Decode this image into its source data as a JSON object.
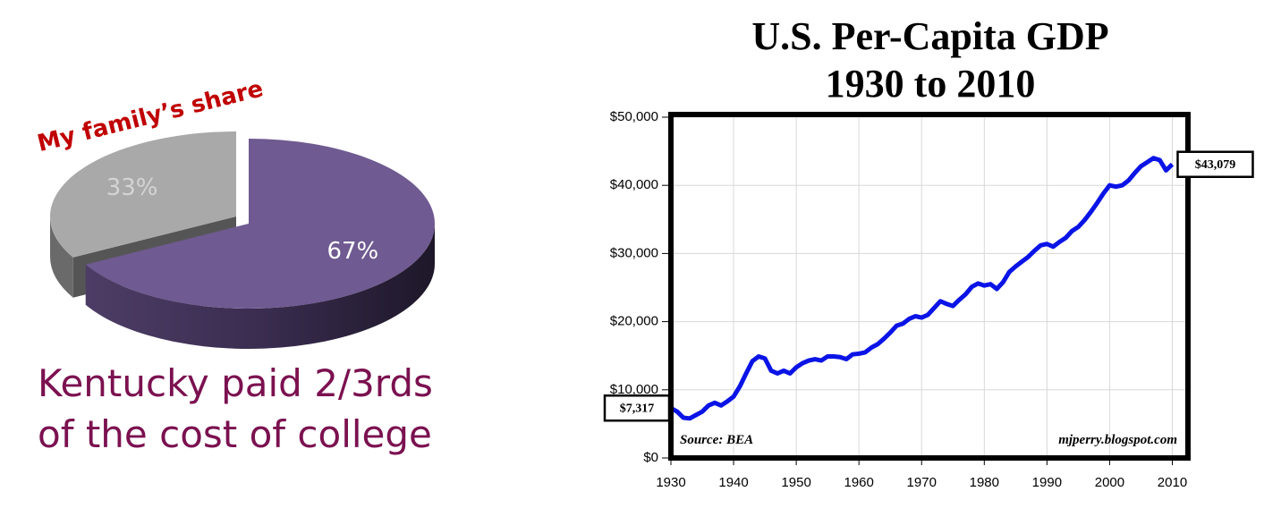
{
  "chart_data": [
    {
      "type": "pie3d",
      "values": [
        33,
        67
      ],
      "value_labels": [
        "33%",
        "67%"
      ],
      "colors": [
        "#a9a9a9",
        "#6f5a91"
      ],
      "annotations": [
        "My family’s share",
        "Kentucky paid 2/3rds",
        "of the cost of college"
      ]
    },
    {
      "type": "line",
      "title": "U.S. Per-Capita GDP",
      "subtitle": "1930 to 2010",
      "x": [
        1930,
        1931,
        1932,
        1933,
        1934,
        1935,
        1936,
        1937,
        1938,
        1939,
        1940,
        1941,
        1942,
        1943,
        1944,
        1945,
        1946,
        1947,
        1948,
        1949,
        1950,
        1951,
        1952,
        1953,
        1954,
        1955,
        1956,
        1957,
        1958,
        1959,
        1960,
        1961,
        1962,
        1963,
        1964,
        1965,
        1966,
        1967,
        1968,
        1969,
        1970,
        1971,
        1972,
        1973,
        1974,
        1975,
        1976,
        1977,
        1978,
        1979,
        1980,
        1981,
        1982,
        1983,
        1984,
        1985,
        1986,
        1987,
        1988,
        1989,
        1990,
        1991,
        1992,
        1993,
        1994,
        1995,
        1996,
        1997,
        1998,
        1999,
        2000,
        2001,
        2002,
        2003,
        2004,
        2005,
        2006,
        2007,
        2008,
        2009,
        2010
      ],
      "series": [
        {
          "name": "U.S. Per-Capita GDP",
          "color": "#0a14e6",
          "values": [
            7317,
            6800,
            5900,
            5800,
            6300,
            6800,
            7700,
            8100,
            7700,
            8300,
            9000,
            10500,
            12400,
            14200,
            14900,
            14600,
            12800,
            12400,
            12800,
            12400,
            13300,
            13900,
            14300,
            14500,
            14300,
            14900,
            14900,
            14800,
            14500,
            15200,
            15300,
            15500,
            16200,
            16700,
            17500,
            18400,
            19400,
            19700,
            20400,
            20800,
            20600,
            21000,
            22000,
            23000,
            22600,
            22300,
            23200,
            24000,
            25100,
            25600,
            25300,
            25500,
            24800,
            25800,
            27300,
            28100,
            28800,
            29500,
            30400,
            31200,
            31400,
            31000,
            31700,
            32300,
            33300,
            33900,
            34900,
            36100,
            37400,
            38800,
            40000,
            39800,
            40000,
            40700,
            41800,
            42800,
            43400,
            44000,
            43700,
            42200,
            43079
          ],
          "value_labels": [
            "$7,317",
            null,
            null,
            null,
            null,
            null,
            null,
            null,
            null,
            null,
            null,
            null,
            null,
            null,
            null,
            null,
            null,
            null,
            null,
            null,
            null,
            null,
            null,
            null,
            null,
            null,
            null,
            null,
            null,
            null,
            null,
            null,
            null,
            null,
            null,
            null,
            null,
            null,
            null,
            null,
            null,
            null,
            null,
            null,
            null,
            null,
            null,
            null,
            null,
            null,
            null,
            null,
            null,
            null,
            null,
            null,
            null,
            null,
            null,
            null,
            null,
            null,
            null,
            null,
            null,
            null,
            null,
            null,
            null,
            null,
            null,
            null,
            null,
            null,
            null,
            null,
            null,
            null,
            null,
            null,
            "$43,079"
          ]
        }
      ],
      "xlim": [
        1930,
        2012.5
      ],
      "ylim": [
        0,
        50000
      ],
      "xticks": [
        1930,
        1940,
        1950,
        1960,
        1970,
        1980,
        1990,
        2000,
        2010
      ],
      "yticks": [
        {
          "value": 0,
          "label": "$0"
        },
        {
          "value": 10000,
          "label": "$10,000"
        },
        {
          "value": 20000,
          "label": "$20,000"
        },
        {
          "value": 30000,
          "label": "$30,000"
        },
        {
          "value": 40000,
          "label": "$40,000"
        },
        {
          "value": 50000,
          "label": "$50,000"
        }
      ],
      "grid": true,
      "source": "Source: BEA",
      "credit": "mjperry.blogspot.com"
    }
  ]
}
